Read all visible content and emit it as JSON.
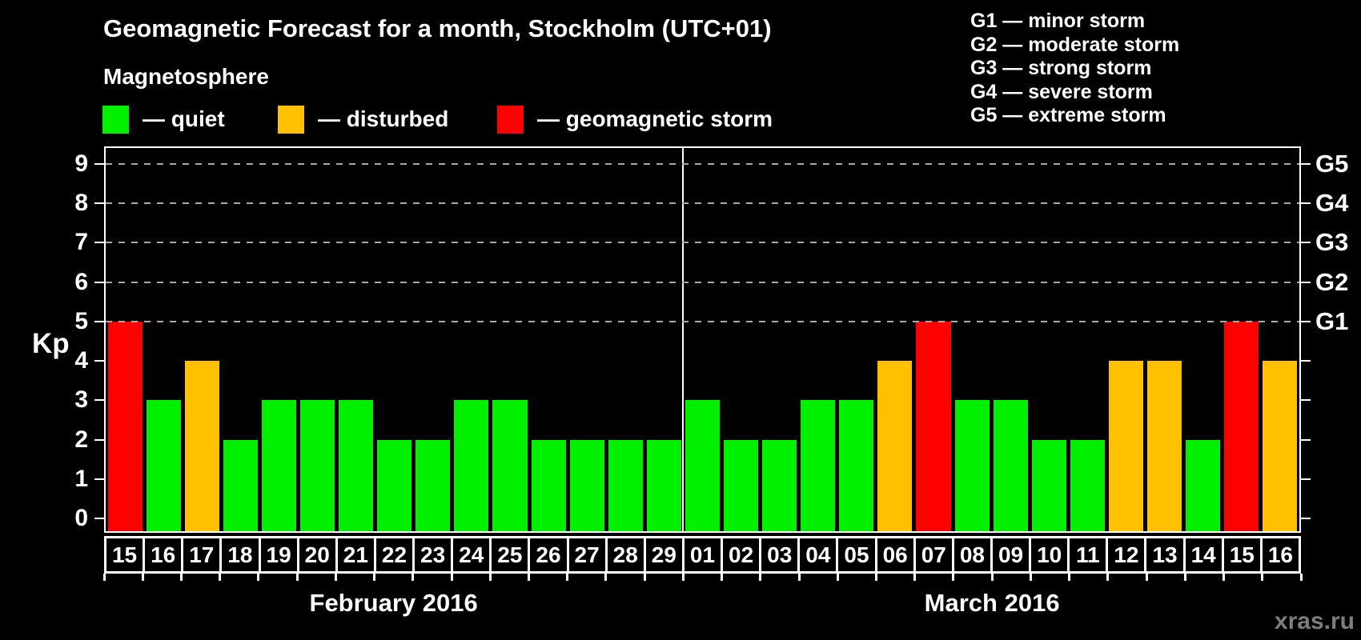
{
  "header": {
    "title": "Geomagnetic Forecast for a month, Stockholm (UTC+01)",
    "subtitle": "Magnetosphere",
    "legend": [
      {
        "status": "quiet",
        "label": "— quiet",
        "color": "#00f000"
      },
      {
        "status": "disturbed",
        "label": "— disturbed",
        "color": "#ffc000"
      },
      {
        "status": "storm",
        "label": "— geomagnetic storm",
        "color": "#ff0000"
      }
    ],
    "storm_scale": [
      "G1 — minor storm",
      "G2 — moderate storm",
      "G3 — strong storm",
      "G4 — severe storm",
      "G5 — extreme storm"
    ]
  },
  "watermark": "xras.ru",
  "chart_data": {
    "type": "bar",
    "title": "Geomagnetic Forecast for a month, Stockholm (UTC+01)",
    "ylabel": "Kp",
    "ylim": [
      0,
      9
    ],
    "ylim_display": [
      -0.32,
      9.4
    ],
    "y_ticks": [
      0,
      1,
      2,
      3,
      4,
      5,
      6,
      7,
      8,
      9
    ],
    "gridlines_at": [
      5,
      6,
      7,
      8,
      9
    ],
    "grid_style": "dashed",
    "legend_position": "top",
    "right_axis": [
      {
        "kp": 5,
        "label": "G1"
      },
      {
        "kp": 6,
        "label": "G2"
      },
      {
        "kp": 7,
        "label": "G3"
      },
      {
        "kp": 8,
        "label": "G4"
      },
      {
        "kp": 9,
        "label": "G5"
      }
    ],
    "status_colors": {
      "quiet": "#00f000",
      "disturbed": "#ffc000",
      "storm": "#ff0000"
    },
    "months": [
      {
        "label": "February 2016",
        "days": [
          {
            "day": "15",
            "kp": 5,
            "status": "storm"
          },
          {
            "day": "16",
            "kp": 3,
            "status": "quiet"
          },
          {
            "day": "17",
            "kp": 4,
            "status": "disturbed"
          },
          {
            "day": "18",
            "kp": 2,
            "status": "quiet"
          },
          {
            "day": "19",
            "kp": 3,
            "status": "quiet"
          },
          {
            "day": "20",
            "kp": 3,
            "status": "quiet"
          },
          {
            "day": "21",
            "kp": 3,
            "status": "quiet"
          },
          {
            "day": "22",
            "kp": 2,
            "status": "quiet"
          },
          {
            "day": "23",
            "kp": 2,
            "status": "quiet"
          },
          {
            "day": "24",
            "kp": 3,
            "status": "quiet"
          },
          {
            "day": "25",
            "kp": 3,
            "status": "quiet"
          },
          {
            "day": "26",
            "kp": 2,
            "status": "quiet"
          },
          {
            "day": "27",
            "kp": 2,
            "status": "quiet"
          },
          {
            "day": "28",
            "kp": 2,
            "status": "quiet"
          },
          {
            "day": "29",
            "kp": 2,
            "status": "quiet"
          }
        ]
      },
      {
        "label": "March 2016",
        "days": [
          {
            "day": "01",
            "kp": 3,
            "status": "quiet"
          },
          {
            "day": "02",
            "kp": 2,
            "status": "quiet"
          },
          {
            "day": "03",
            "kp": 2,
            "status": "quiet"
          },
          {
            "day": "04",
            "kp": 3,
            "status": "quiet"
          },
          {
            "day": "05",
            "kp": 3,
            "status": "quiet"
          },
          {
            "day": "06",
            "kp": 4,
            "status": "disturbed"
          },
          {
            "day": "07",
            "kp": 5,
            "status": "storm"
          },
          {
            "day": "08",
            "kp": 3,
            "status": "quiet"
          },
          {
            "day": "09",
            "kp": 3,
            "status": "quiet"
          },
          {
            "day": "10",
            "kp": 2,
            "status": "quiet"
          },
          {
            "day": "11",
            "kp": 2,
            "status": "quiet"
          },
          {
            "day": "12",
            "kp": 4,
            "status": "disturbed"
          },
          {
            "day": "13",
            "kp": 4,
            "status": "disturbed"
          },
          {
            "day": "14",
            "kp": 2,
            "status": "quiet"
          },
          {
            "day": "15",
            "kp": 5,
            "status": "storm"
          },
          {
            "day": "16",
            "kp": 4,
            "status": "disturbed"
          }
        ]
      }
    ]
  }
}
